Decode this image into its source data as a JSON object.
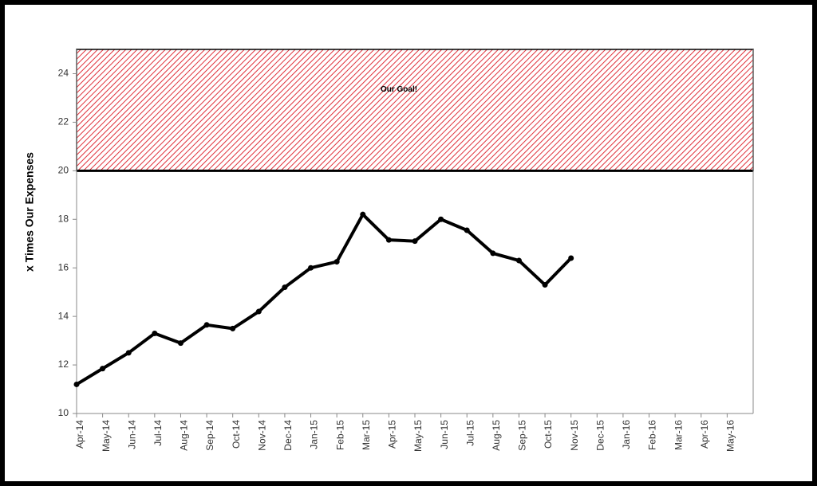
{
  "chart_data": {
    "type": "line",
    "ylabel": "x Times Our Expenses",
    "categories": [
      "Apr-14",
      "May-14",
      "Jun-14",
      "Jul-14",
      "Aug-14",
      "Sep-14",
      "Oct-14",
      "Nov-14",
      "Dec-14",
      "Jan-15",
      "Feb-15",
      "Mar-15",
      "Apr-15",
      "May-15",
      "Jun-15",
      "Jul-15",
      "Aug-15",
      "Sep-15",
      "Oct-15",
      "Nov-15",
      "Dec-15",
      "Jan-16",
      "Feb-16",
      "Mar-16",
      "Apr-16",
      "May-16"
    ],
    "series": [
      {
        "name": "x Times Our Expenses",
        "color": "#000000",
        "values": [
          11.2,
          11.85,
          12.5,
          13.3,
          12.9,
          13.65,
          13.5,
          14.2,
          15.2,
          16.0,
          16.25,
          18.2,
          17.15,
          17.1,
          18.0,
          17.55,
          16.6,
          16.3,
          15.3,
          16.4,
          null,
          null,
          null,
          null,
          null,
          null
        ]
      }
    ],
    "goal_band": [
      20,
      25
    ],
    "goal_label": "Our Goal!",
    "goal_color": "#e0303a",
    "ylim": [
      10,
      25
    ],
    "yticks": [
      10,
      12,
      14,
      16,
      18,
      20,
      22,
      24
    ],
    "grid": false
  }
}
